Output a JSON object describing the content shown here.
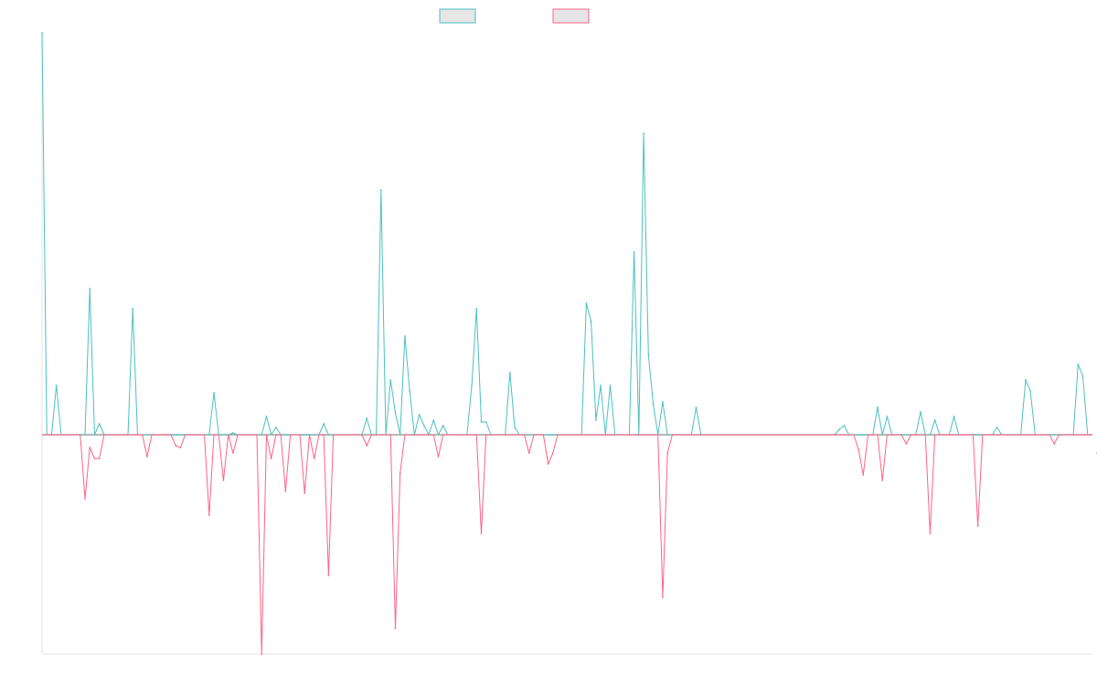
{
  "chart_data": {
    "type": "line",
    "title": "",
    "xlabel": "",
    "ylabel": "",
    "ylim": [
      -240,
      440
    ],
    "legend_position": "top-center",
    "grid": false,
    "x_count": 221,
    "series": [
      {
        "color": "#4bc0c0",
        "fill": "#e6e6e6",
        "points": [
          [
            0,
            440
          ],
          [
            3,
            54
          ],
          [
            10,
            160
          ],
          [
            12,
            12
          ],
          [
            19,
            138
          ],
          [
            36,
            46
          ],
          [
            40,
            2
          ],
          [
            47,
            20
          ],
          [
            49,
            8
          ],
          [
            59,
            12
          ],
          [
            68,
            18
          ],
          [
            71,
            268
          ],
          [
            73,
            60
          ],
          [
            74,
            24
          ],
          [
            76,
            108
          ],
          [
            77,
            48
          ],
          [
            79,
            22
          ],
          [
            80,
            10
          ],
          [
            82,
            16
          ],
          [
            84,
            10
          ],
          [
            90,
            54
          ],
          [
            91,
            138
          ],
          [
            92,
            14
          ],
          [
            93,
            14
          ],
          [
            98,
            68
          ],
          [
            99,
            8
          ],
          [
            114,
            144
          ],
          [
            115,
            124
          ],
          [
            116,
            16
          ],
          [
            117,
            54
          ],
          [
            119,
            54
          ],
          [
            124,
            200
          ],
          [
            126,
            330
          ],
          [
            127,
            88
          ],
          [
            128,
            34
          ],
          [
            130,
            36
          ],
          [
            137,
            30
          ],
          [
            167,
            6
          ],
          [
            168,
            10
          ],
          [
            175,
            30
          ],
          [
            177,
            20
          ],
          [
            184,
            25
          ],
          [
            187,
            16
          ],
          [
            191,
            20
          ],
          [
            200,
            8
          ],
          [
            206,
            60
          ],
          [
            207,
            48
          ],
          [
            217,
            77
          ],
          [
            218,
            64
          ],
          [
            226,
            40
          ],
          [
            227,
            10
          ]
        ]
      },
      {
        "color": "#ff6384",
        "fill": "#e6e6e6",
        "points": [
          [
            9,
            -70
          ],
          [
            10,
            -14
          ],
          [
            11,
            -26
          ],
          [
            12,
            -26
          ],
          [
            22,
            -24
          ],
          [
            28,
            -12
          ],
          [
            29,
            -14
          ],
          [
            35,
            -88
          ],
          [
            38,
            -50
          ],
          [
            40,
            -20
          ],
          [
            46,
            -240
          ],
          [
            48,
            -26
          ],
          [
            51,
            -62
          ],
          [
            55,
            -64
          ],
          [
            57,
            -26
          ],
          [
            60,
            -154
          ],
          [
            68,
            -12
          ],
          [
            74,
            -212
          ],
          [
            75,
            -42
          ],
          [
            83,
            -24
          ],
          [
            92,
            -108
          ],
          [
            102,
            -20
          ],
          [
            106,
            -32
          ],
          [
            107,
            -20
          ],
          [
            130,
            -178
          ],
          [
            131,
            -20
          ],
          [
            171,
            -16
          ],
          [
            172,
            -44
          ],
          [
            176,
            -50
          ],
          [
            181,
            -10
          ],
          [
            186,
            -108
          ],
          [
            196,
            -100
          ],
          [
            212,
            -10
          ],
          [
            221,
            -20
          ],
          [
            222,
            -40
          ]
        ]
      }
    ]
  },
  "legend": [
    {
      "label": "",
      "color": "#4bc0c0"
    },
    {
      "label": "",
      "color": "#ff6384"
    }
  ]
}
